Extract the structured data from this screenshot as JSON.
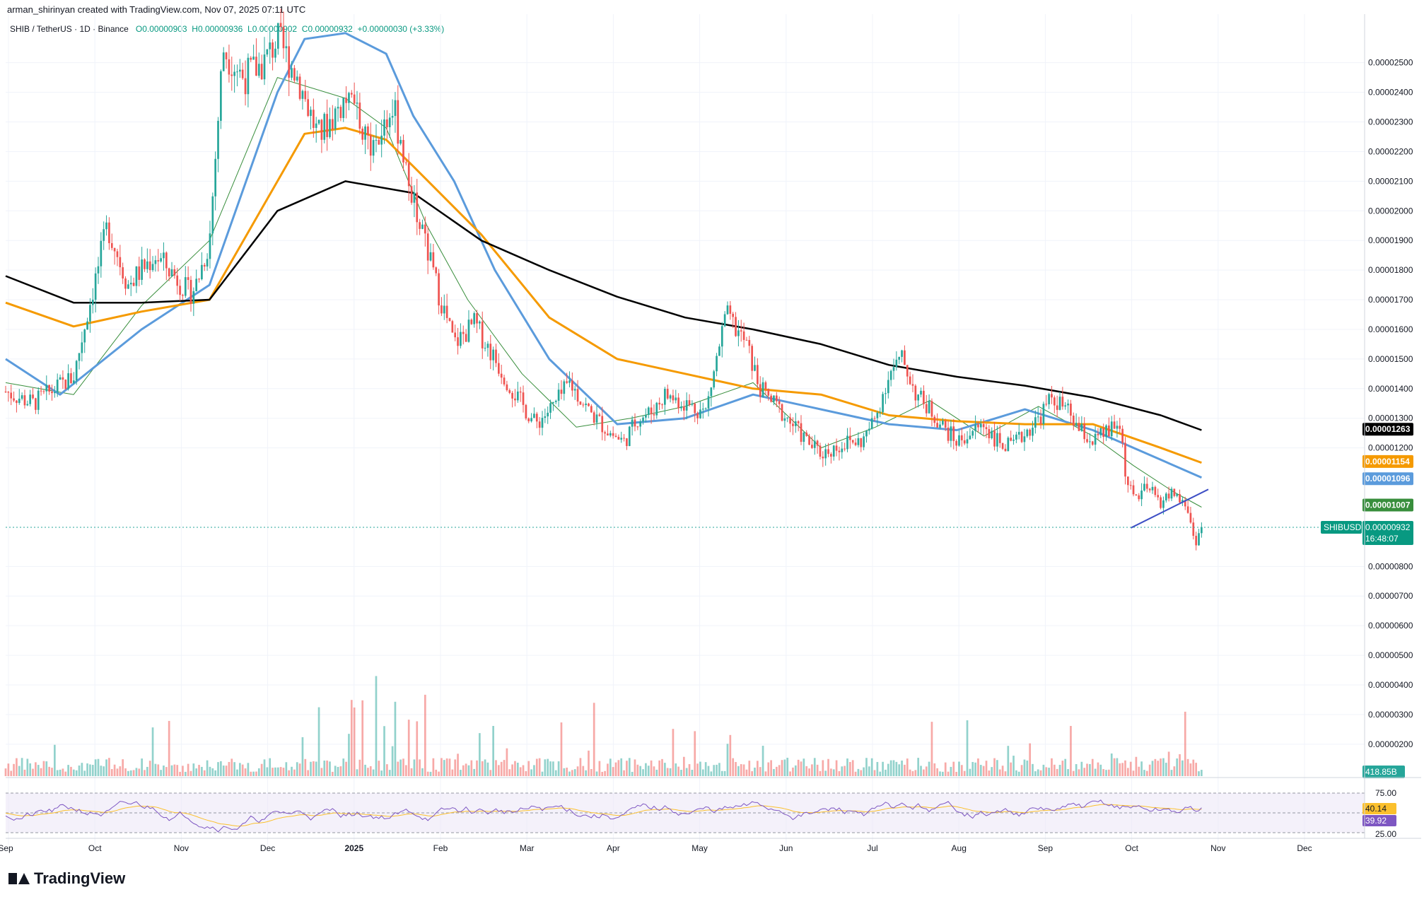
{
  "header": {
    "credit": "arman_shirinyan created with TradingView.com, Nov 07, 2025 07:11 UTC"
  },
  "symbol": {
    "pair": "SHIB / TetherUS · 1D · Binance",
    "open": "O0.00000903",
    "high": "H0.00000936",
    "low": "L0.00000902",
    "close": "C0.00000932",
    "change": "+0.00000030 (+3.33%)"
  },
  "colors": {
    "up": "#26a69a",
    "down": "#ef5350",
    "ma_black": "#000000",
    "ma_orange": "#f59a00",
    "ma_blue": "#5b9bdc",
    "ma_green": "#388e3c",
    "trend_line": "#3e4fc5",
    "rsi": "#7e57c2",
    "rsi_ma": "#fbc02d"
  },
  "chart_data": {
    "type": "candlestick",
    "title": "SHIB / TetherUS · 1D · Binance",
    "price_axis": [
      "0.00002500",
      "0.00002400",
      "0.00002300",
      "0.00002200",
      "0.00002100",
      "0.00002000",
      "0.00001900",
      "0.00001800",
      "0.00001700",
      "0.00001600",
      "0.00001500",
      "0.00001400",
      "0.00001300",
      "0.00001200",
      "0.00000800",
      "0.00000700",
      "0.00000600",
      "0.00000500",
      "0.00000400",
      "0.00000300",
      "0.00000200"
    ],
    "time_axis": [
      "Sep",
      "Oct",
      "Nov",
      "Dec",
      "2025",
      "Feb",
      "Mar",
      "Apr",
      "May",
      "Jun",
      "Jul",
      "Aug",
      "Sep",
      "Oct",
      "Nov",
      "Dec"
    ],
    "ylim": [
      6.6e-06,
      2.64e-05
    ],
    "scale": "linear",
    "ma_labels": [
      {
        "value": "0.00001263",
        "color": "#000000"
      },
      {
        "value": "0.00001154",
        "color": "#f59a00"
      },
      {
        "value": "0.00001096",
        "color": "#5b9bdc"
      },
      {
        "value": "0.00001007",
        "color": "#388e3c"
      }
    ],
    "last_price": {
      "symbol": "SHIBUSDT",
      "value": "0.00000932",
      "countdown": "16:48:07"
    },
    "volume_label": "418.85B",
    "rsi": {
      "levels": [
        "75.00",
        "25.00"
      ],
      "value": "40.14",
      "ma_value": "39.92"
    },
    "price_path": [
      [
        0,
        1.39e-05
      ],
      [
        0.02,
        1.35e-05
      ],
      [
        0.05,
        1.44e-05
      ],
      [
        0.06,
        1.65e-05
      ],
      [
        0.075,
        1.95e-05
      ],
      [
        0.09,
        1.75e-05
      ],
      [
        0.1,
        1.8e-05
      ],
      [
        0.11,
        1.85e-05
      ],
      [
        0.125,
        1.78e-05
      ],
      [
        0.135,
        1.72e-05
      ],
      [
        0.14,
        1.75e-05
      ],
      [
        0.15,
        1.9e-05
      ],
      [
        0.16,
        2.55e-05
      ],
      [
        0.175,
        2.45e-05
      ],
      [
        0.19,
        2.5e-05
      ],
      [
        0.2,
        2.58e-05
      ],
      [
        0.215,
        2.45e-05
      ],
      [
        0.23,
        2.25e-05
      ],
      [
        0.25,
        2.38e-05
      ],
      [
        0.27,
        2.22e-05
      ],
      [
        0.285,
        2.35e-05
      ],
      [
        0.3,
        2.05e-05
      ],
      [
        0.315,
        1.78e-05
      ],
      [
        0.33,
        1.55e-05
      ],
      [
        0.345,
        1.62e-05
      ],
      [
        0.36,
        1.5e-05
      ],
      [
        0.375,
        1.38e-05
      ],
      [
        0.39,
        1.28e-05
      ],
      [
        0.405,
        1.35e-05
      ],
      [
        0.415,
        1.42e-05
      ],
      [
        0.43,
        1.32e-05
      ],
      [
        0.445,
        1.25e-05
      ],
      [
        0.455,
        1.22e-05
      ],
      [
        0.465,
        1.3e-05
      ],
      [
        0.475,
        1.32e-05
      ],
      [
        0.485,
        1.38e-05
      ],
      [
        0.5,
        1.35e-05
      ],
      [
        0.515,
        1.32e-05
      ],
      [
        0.53,
        1.65e-05
      ],
      [
        0.545,
        1.55e-05
      ],
      [
        0.555,
        1.4e-05
      ],
      [
        0.565,
        1.35e-05
      ],
      [
        0.575,
        1.3e-05
      ],
      [
        0.59,
        1.22e-05
      ],
      [
        0.6,
        1.18e-05
      ],
      [
        0.61,
        1.2e-05
      ],
      [
        0.62,
        1.22e-05
      ],
      [
        0.63,
        1.22e-05
      ],
      [
        0.64,
        1.3e-05
      ],
      [
        0.65,
        1.45e-05
      ],
      [
        0.66,
        1.5e-05
      ],
      [
        0.67,
        1.38e-05
      ],
      [
        0.68,
        1.33e-05
      ],
      [
        0.69,
        1.27e-05
      ],
      [
        0.7,
        1.22e-05
      ],
      [
        0.71,
        1.25e-05
      ],
      [
        0.72,
        1.28e-05
      ],
      [
        0.73,
        1.22e-05
      ],
      [
        0.74,
        1.2e-05
      ],
      [
        0.75,
        1.25e-05
      ],
      [
        0.76,
        1.3e-05
      ],
      [
        0.77,
        1.37e-05
      ],
      [
        0.78,
        1.33e-05
      ],
      [
        0.79,
        1.26e-05
      ],
      [
        0.8,
        1.22e-05
      ],
      [
        0.81,
        1.25e-05
      ],
      [
        0.82,
        1.28e-05
      ],
      [
        0.825,
        1.08e-05
      ],
      [
        0.83,
        1.03e-05
      ],
      [
        0.84,
        1.06e-05
      ],
      [
        0.85,
        1.02e-05
      ],
      [
        0.86,
        1.05e-05
      ],
      [
        0.87,
        9.9e-06
      ],
      [
        0.875,
        8.8e-06
      ],
      [
        0.88,
        9.3e-06
      ]
    ],
    "ma_black_path": [
      [
        0,
        1.78e-05
      ],
      [
        0.05,
        1.69e-05
      ],
      [
        0.1,
        1.69e-05
      ],
      [
        0.15,
        1.7e-05
      ],
      [
        0.2,
        2e-05
      ],
      [
        0.25,
        2.1e-05
      ],
      [
        0.3,
        2.06e-05
      ],
      [
        0.35,
        1.9e-05
      ],
      [
        0.4,
        1.8e-05
      ],
      [
        0.45,
        1.71e-05
      ],
      [
        0.5,
        1.64e-05
      ],
      [
        0.55,
        1.6e-05
      ],
      [
        0.6,
        1.55e-05
      ],
      [
        0.65,
        1.48e-05
      ],
      [
        0.7,
        1.44e-05
      ],
      [
        0.75,
        1.41e-05
      ],
      [
        0.8,
        1.37e-05
      ],
      [
        0.85,
        1.31e-05
      ],
      [
        0.88,
        1.26e-05
      ]
    ],
    "ma_orange_path": [
      [
        0,
        1.69e-05
      ],
      [
        0.05,
        1.61e-05
      ],
      [
        0.1,
        1.66e-05
      ],
      [
        0.15,
        1.7e-05
      ],
      [
        0.2,
        2.1e-05
      ],
      [
        0.22,
        2.26e-05
      ],
      [
        0.25,
        2.28e-05
      ],
      [
        0.28,
        2.24e-05
      ],
      [
        0.3,
        2.15e-05
      ],
      [
        0.35,
        1.92e-05
      ],
      [
        0.4,
        1.64e-05
      ],
      [
        0.45,
        1.5e-05
      ],
      [
        0.5,
        1.45e-05
      ],
      [
        0.55,
        1.4e-05
      ],
      [
        0.6,
        1.38e-05
      ],
      [
        0.65,
        1.31e-05
      ],
      [
        0.7,
        1.29e-05
      ],
      [
        0.75,
        1.28e-05
      ],
      [
        0.8,
        1.28e-05
      ],
      [
        0.85,
        1.2e-05
      ],
      [
        0.88,
        1.15e-05
      ]
    ],
    "ma_blue_path": [
      [
        0,
        1.5e-05
      ],
      [
        0.04,
        1.38e-05
      ],
      [
        0.1,
        1.6e-05
      ],
      [
        0.15,
        1.75e-05
      ],
      [
        0.2,
        2.4e-05
      ],
      [
        0.22,
        2.58e-05
      ],
      [
        0.25,
        2.6e-05
      ],
      [
        0.28,
        2.53e-05
      ],
      [
        0.3,
        2.32e-05
      ],
      [
        0.33,
        2.1e-05
      ],
      [
        0.36,
        1.8e-05
      ],
      [
        0.4,
        1.5e-05
      ],
      [
        0.45,
        1.28e-05
      ],
      [
        0.5,
        1.3e-05
      ],
      [
        0.55,
        1.38e-05
      ],
      [
        0.6,
        1.33e-05
      ],
      [
        0.65,
        1.28e-05
      ],
      [
        0.7,
        1.26e-05
      ],
      [
        0.75,
        1.33e-05
      ],
      [
        0.8,
        1.26e-05
      ],
      [
        0.85,
        1.16e-05
      ],
      [
        0.88,
        1.1e-05
      ]
    ],
    "ma_green_path": [
      [
        0,
        1.42e-05
      ],
      [
        0.05,
        1.38e-05
      ],
      [
        0.1,
        1.68e-05
      ],
      [
        0.15,
        1.9e-05
      ],
      [
        0.2,
        2.45e-05
      ],
      [
        0.25,
        2.38e-05
      ],
      [
        0.28,
        2.28e-05
      ],
      [
        0.31,
        1.95e-05
      ],
      [
        0.34,
        1.7e-05
      ],
      [
        0.38,
        1.45e-05
      ],
      [
        0.42,
        1.27e-05
      ],
      [
        0.46,
        1.3e-05
      ],
      [
        0.5,
        1.34e-05
      ],
      [
        0.55,
        1.42e-05
      ],
      [
        0.6,
        1.2e-05
      ],
      [
        0.64,
        1.27e-05
      ],
      [
        0.68,
        1.36e-05
      ],
      [
        0.72,
        1.24e-05
      ],
      [
        0.76,
        1.34e-05
      ],
      [
        0.8,
        1.24e-05
      ],
      [
        0.83,
        1.14e-05
      ],
      [
        0.86,
        1.05e-05
      ],
      [
        0.88,
        1e-05
      ]
    ]
  }
}
